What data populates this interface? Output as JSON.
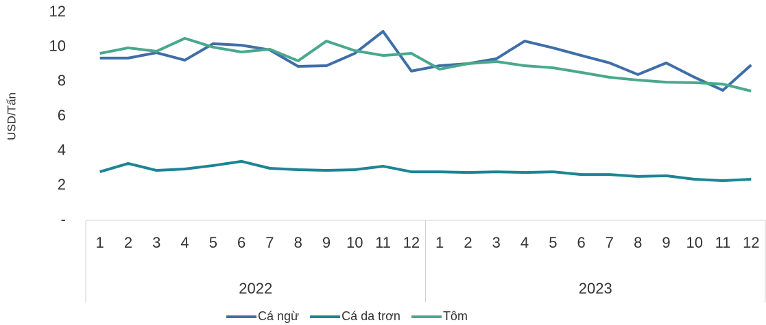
{
  "chart_data": {
    "type": "line",
    "y_label": "USD/Tấn",
    "categories": [
      "1",
      "2",
      "3",
      "4",
      "5",
      "6",
      "7",
      "8",
      "9",
      "10",
      "11",
      "12",
      "1",
      "2",
      "3",
      "4",
      "5",
      "6",
      "7",
      "8",
      "9",
      "10",
      "11",
      "12"
    ],
    "groups": [
      "2022",
      "2023"
    ],
    "ylim": [
      0,
      12
    ],
    "yticks": [
      {
        "value": 0,
        "label": "-"
      },
      2,
      4,
      6,
      8,
      10,
      12
    ],
    "grid": false,
    "legend": "bottom",
    "series": [
      {
        "name": "Cá ngừ",
        "color": "#3f6ea8",
        "values": [
          9.36,
          9.36,
          9.67,
          9.24,
          10.19,
          10.1,
          9.83,
          8.88,
          8.92,
          9.63,
          10.9,
          8.61,
          8.92,
          9.04,
          9.32,
          10.34,
          9.95,
          9.51,
          9.08,
          8.41,
          9.08,
          8.25,
          7.5,
          8.96
        ]
      },
      {
        "name": "Cá da trơn",
        "color": "#1d8494",
        "values": [
          2.8,
          3.28,
          2.88,
          2.96,
          3.16,
          3.4,
          3.0,
          2.92,
          2.88,
          2.92,
          3.12,
          2.8,
          2.8,
          2.76,
          2.8,
          2.76,
          2.8,
          2.64,
          2.64,
          2.53,
          2.57,
          2.37,
          2.29,
          2.37
        ]
      },
      {
        "name": "Tôm",
        "color": "#4aa88c",
        "values": [
          9.63,
          9.95,
          9.75,
          10.5,
          9.99,
          9.71,
          9.87,
          9.2,
          10.34,
          9.79,
          9.51,
          9.63,
          8.72,
          9.04,
          9.16,
          8.92,
          8.8,
          8.53,
          8.25,
          8.09,
          7.97,
          7.94,
          7.86,
          7.46
        ]
      }
    ]
  }
}
